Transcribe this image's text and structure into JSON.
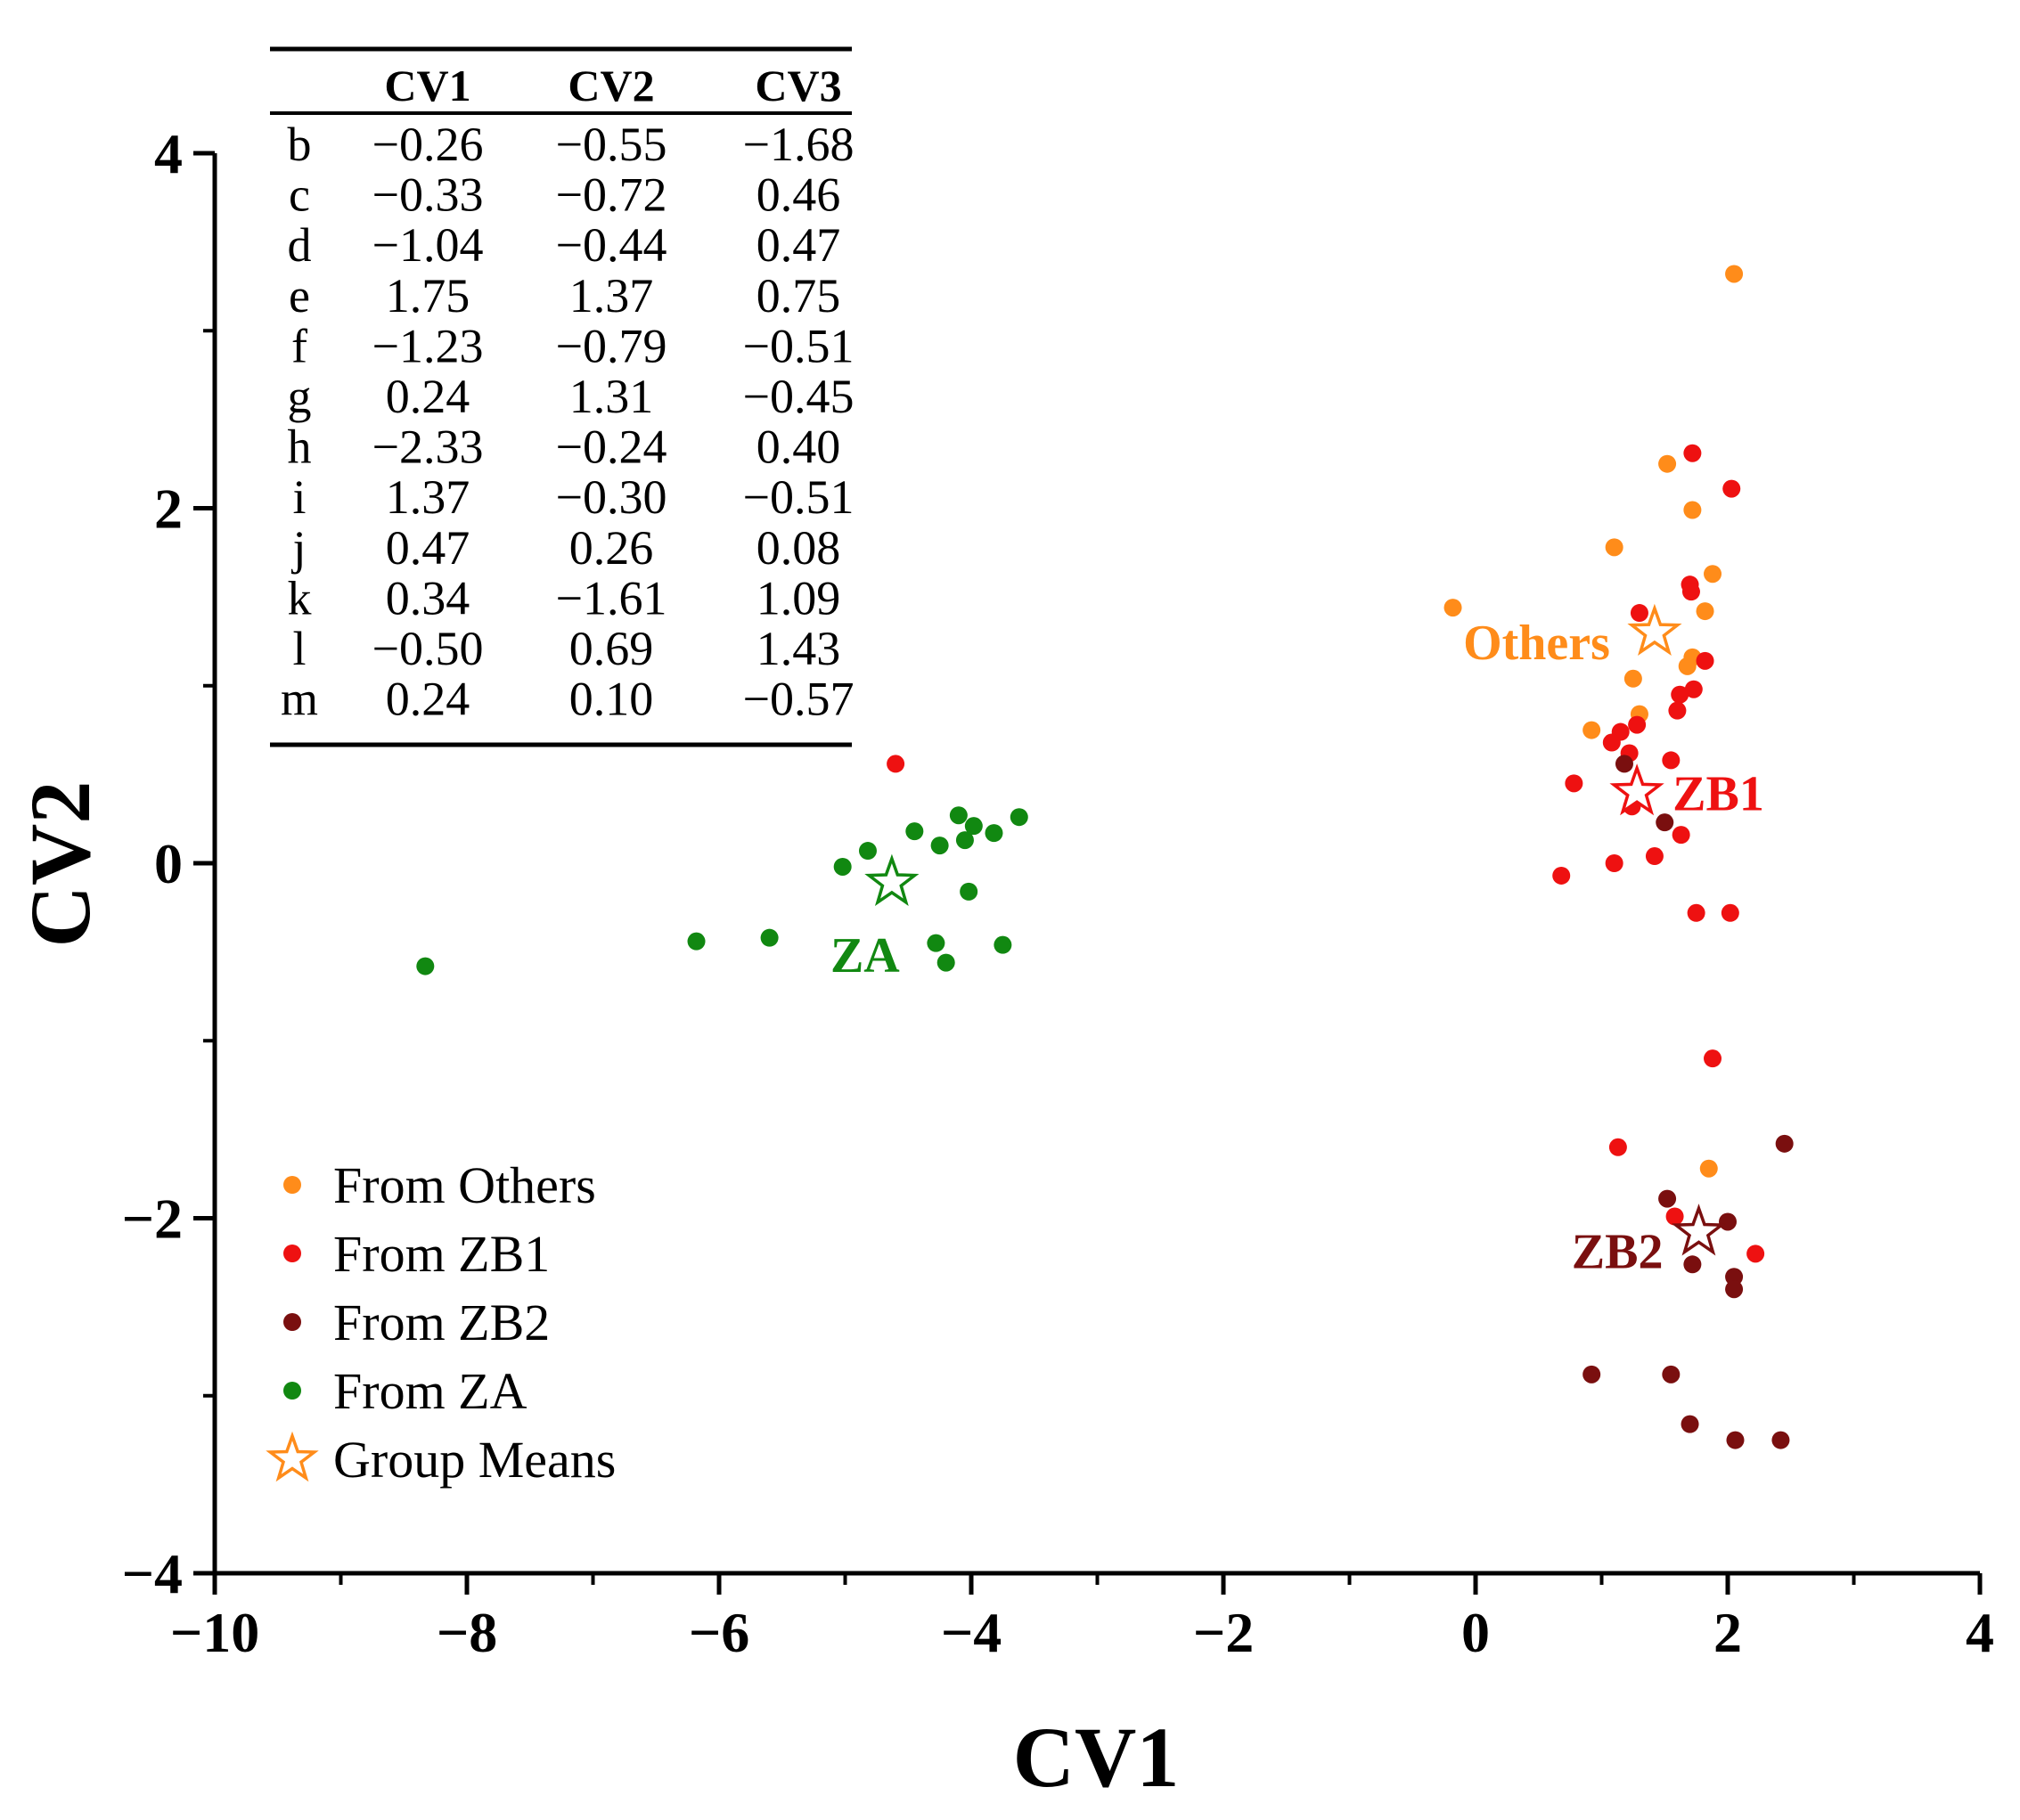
{
  "chart_data": {
    "type": "scatter",
    "xlabel": "CV1",
    "ylabel": "CV2",
    "xlim": [
      -10,
      4
    ],
    "ylim": [
      -4,
      4
    ],
    "xticks": [
      -10,
      -8,
      -6,
      -4,
      -2,
      0,
      2,
      4
    ],
    "xtick_labels": [
      "−10",
      "−8",
      "−6",
      "−4",
      "−2",
      "0",
      "2",
      "4"
    ],
    "yticks": [
      -4,
      -2,
      0,
      2,
      4
    ],
    "ytick_labels": [
      "−4",
      "−2",
      "0",
      "2",
      "4"
    ],
    "grid": false,
    "legend_position": "bottom-left",
    "series": [
      {
        "name": "From Others",
        "color": "#ff8c1a",
        "points": [
          [
            2.05,
            3.32
          ],
          [
            1.52,
            2.25
          ],
          [
            1.72,
            1.99
          ],
          [
            1.1,
            1.78
          ],
          [
            1.88,
            1.63
          ],
          [
            -0.18,
            1.44
          ],
          [
            1.82,
            1.42
          ],
          [
            1.72,
            1.16
          ],
          [
            1.68,
            1.11
          ],
          [
            1.25,
            1.04
          ],
          [
            1.3,
            0.84
          ],
          [
            0.92,
            0.75
          ],
          [
            1.85,
            -1.72
          ]
        ]
      },
      {
        "name": "From ZB1",
        "color": "#ee1111",
        "points": [
          [
            1.72,
            2.31
          ],
          [
            2.03,
            2.11
          ],
          [
            1.7,
            1.57
          ],
          [
            1.71,
            1.53
          ],
          [
            1.3,
            1.41
          ],
          [
            1.82,
            1.14
          ],
          [
            1.73,
            0.98
          ],
          [
            1.62,
            0.95
          ],
          [
            1.6,
            0.86
          ],
          [
            1.28,
            0.78
          ],
          [
            1.15,
            0.74
          ],
          [
            1.08,
            0.68
          ],
          [
            1.22,
            0.62
          ],
          [
            1.55,
            0.58
          ],
          [
            0.78,
            0.45
          ],
          [
            1.24,
            0.32
          ],
          [
            1.63,
            0.16
          ],
          [
            1.42,
            0.04
          ],
          [
            1.1,
            0.0
          ],
          [
            0.68,
            -0.07
          ],
          [
            1.75,
            -0.28
          ],
          [
            2.02,
            -0.28
          ],
          [
            1.88,
            -1.1
          ],
          [
            1.13,
            -1.6
          ],
          [
            1.58,
            -1.99
          ],
          [
            2.22,
            -2.2
          ],
          [
            -4.6,
            0.56
          ]
        ]
      },
      {
        "name": "From ZB2",
        "color": "#7a0f0f",
        "points": [
          [
            1.18,
            0.56
          ],
          [
            1.5,
            0.23
          ],
          [
            2.45,
            -1.58
          ],
          [
            1.52,
            -1.89
          ],
          [
            2.0,
            -2.02
          ],
          [
            1.72,
            -2.26
          ],
          [
            2.05,
            -2.33
          ],
          [
            2.05,
            -2.4
          ],
          [
            0.92,
            -2.88
          ],
          [
            1.55,
            -2.88
          ],
          [
            1.7,
            -3.16
          ],
          [
            2.06,
            -3.25
          ],
          [
            2.42,
            -3.25
          ]
        ]
      },
      {
        "name": "From ZA",
        "color": "#118811",
        "points": [
          [
            -8.33,
            -0.58
          ],
          [
            -6.18,
            -0.44
          ],
          [
            -5.6,
            -0.42
          ],
          [
            -5.02,
            -0.02
          ],
          [
            -4.82,
            0.07
          ],
          [
            -4.45,
            0.18
          ],
          [
            -4.25,
            0.1
          ],
          [
            -4.1,
            0.27
          ],
          [
            -4.05,
            0.13
          ],
          [
            -3.98,
            0.21
          ],
          [
            -3.82,
            0.17
          ],
          [
            -3.62,
            0.26
          ],
          [
            -4.02,
            -0.16
          ],
          [
            -4.28,
            -0.45
          ],
          [
            -4.2,
            -0.56
          ],
          [
            -3.75,
            -0.46
          ]
        ]
      }
    ],
    "group_means": [
      {
        "name": "Others",
        "color": "#ff8c1a",
        "x": 1.42,
        "y": 1.3
      },
      {
        "name": "ZB1",
        "color": "#ee1111",
        "x": 1.28,
        "y": 0.4
      },
      {
        "name": "ZA",
        "color": "#118811",
        "x": -4.63,
        "y": -0.11
      },
      {
        "name": "ZB2",
        "color": "#7a0f0f",
        "x": 1.77,
        "y": -2.08
      }
    ],
    "legend": [
      {
        "label": "From Others",
        "color": "#ff8c1a",
        "marker": "dot"
      },
      {
        "label": "From ZB1",
        "color": "#ee1111",
        "marker": "dot"
      },
      {
        "label": "From ZB2",
        "color": "#7a0f0f",
        "marker": "dot"
      },
      {
        "label": "From ZA",
        "color": "#118811",
        "marker": "dot"
      },
      {
        "label": "Group Means",
        "color": "#ff8c1a",
        "marker": "star"
      }
    ],
    "coefficient_table": {
      "headers": [
        "",
        "CV1",
        "CV2",
        "CV3"
      ],
      "rows": [
        [
          "b",
          "−0.26",
          "−0.55",
          "−1.68"
        ],
        [
          "c",
          "−0.33",
          "−0.72",
          "0.46"
        ],
        [
          "d",
          "−1.04",
          "−0.44",
          "0.47"
        ],
        [
          "e",
          "1.75",
          "1.37",
          "0.75"
        ],
        [
          "f",
          "−1.23",
          "−0.79",
          "−0.51"
        ],
        [
          "g",
          "0.24",
          "1.31",
          "−0.45"
        ],
        [
          "h",
          "−2.33",
          "−0.24",
          "0.40"
        ],
        [
          "i",
          "1.37",
          "−0.30",
          "−0.51"
        ],
        [
          "j",
          "0.47",
          "0.26",
          "0.08"
        ],
        [
          "k",
          "0.34",
          "−1.61",
          "1.09"
        ],
        [
          "l",
          "−0.50",
          "0.69",
          "1.43"
        ],
        [
          "m",
          "0.24",
          "0.10",
          "−0.57"
        ]
      ]
    }
  }
}
